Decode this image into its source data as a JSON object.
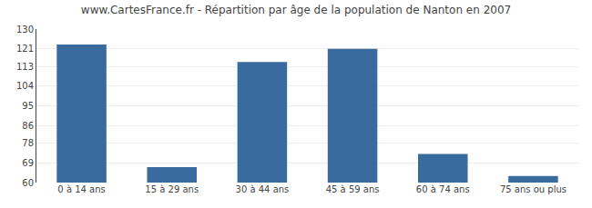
{
  "chart_data": {
    "type": "bar",
    "title": "www.CartesFrance.fr - Répartition par âge de la population de Nanton en 2007",
    "categories": [
      "0 à 14 ans",
      "15 à 29 ans",
      "30 à 44 ans",
      "45 à 59 ans",
      "60 à 74 ans",
      "75 ans ou plus"
    ],
    "values": [
      123,
      67,
      115,
      121,
      73,
      63
    ],
    "color": "#3a6b9e",
    "ylim": [
      60,
      130
    ],
    "yticks": [
      60,
      69,
      78,
      86,
      95,
      104,
      113,
      121,
      130
    ],
    "grid": true
  }
}
